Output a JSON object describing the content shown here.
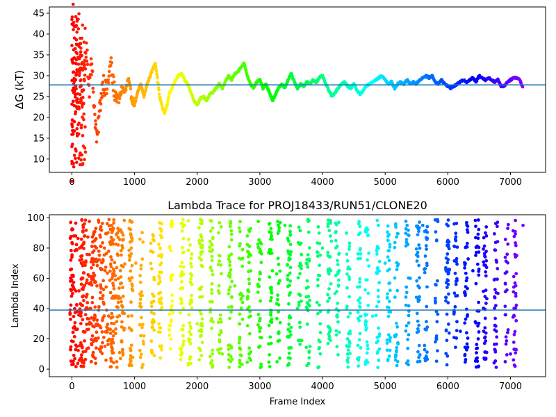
{
  "chart_data": [
    {
      "type": "scatter",
      "title": "",
      "xlabel": "",
      "ylabel": "ΔG (kT)",
      "xlim": [
        -360,
        7560
      ],
      "ylim": [
        6.8,
        46.5
      ],
      "xticks": [
        0,
        1000,
        2000,
        3000,
        4000,
        5000,
        6000,
        7000
      ],
      "yticks": [
        10,
        15,
        20,
        25,
        30,
        35,
        40,
        45
      ],
      "hline": 27.8,
      "colormap": "rainbow (red at early frames → purple at late frames)",
      "series": [
        {
          "points": [
            [
              0,
              10
            ],
            [
              0,
              20
            ],
            [
              0,
              40
            ],
            [
              0,
              36
            ],
            [
              0,
              33
            ],
            [
              0,
              26
            ],
            [
              0,
              22
            ],
            [
              0,
              14
            ],
            [
              0,
              8
            ],
            [
              20,
              43
            ],
            [
              20,
              30
            ],
            [
              20,
              17
            ],
            [
              40,
              39
            ],
            [
              40,
              25
            ],
            [
              40,
              12
            ],
            [
              60,
              35
            ],
            [
              60,
              28
            ],
            [
              80,
              41
            ],
            [
              80,
              23
            ],
            [
              100,
              38
            ],
            [
              100,
              19
            ],
            [
              120,
              32
            ],
            [
              140,
              36
            ],
            [
              140,
              24
            ],
            [
              160,
              40
            ],
            [
              160,
              21
            ],
            [
              180,
              34
            ],
            [
              200,
              30
            ],
            [
              200,
              27
            ],
            [
              220,
              37
            ],
            [
              250,
              33
            ],
            [
              280,
              26
            ],
            [
              300,
              35
            ],
            [
              330,
              29
            ],
            [
              360,
              22
            ],
            [
              400,
              14
            ],
            [
              450,
              23
            ],
            [
              500,
              29
            ],
            [
              550,
              26
            ],
            [
              620,
              33
            ],
            [
              660,
              28
            ],
            [
              700,
              25
            ],
            [
              750,
              24
            ],
            [
              800,
              27
            ],
            [
              850,
              26
            ],
            [
              900,
              29
            ],
            [
              950,
              25
            ],
            [
              1000,
              23
            ],
            [
              1050,
              26
            ],
            [
              1100,
              28
            ],
            [
              1150,
              25
            ],
            [
              1200,
              28
            ],
            [
              1250,
              30
            ],
            [
              1300,
              32
            ],
            [
              1330,
              33
            ],
            [
              1360,
              30
            ],
            [
              1400,
              25
            ],
            [
              1450,
              22
            ],
            [
              1480,
              21
            ],
            [
              1520,
              23
            ],
            [
              1560,
              26
            ],
            [
              1600,
              27
            ],
            [
              1650,
              29
            ],
            [
              1700,
              30
            ],
            [
              1750,
              30.5
            ],
            [
              1800,
              29
            ],
            [
              1850,
              28
            ],
            [
              1900,
              26
            ],
            [
              1950,
              24
            ],
            [
              2000,
              23
            ],
            [
              2050,
              24.5
            ],
            [
              2100,
              25
            ],
            [
              2150,
              24
            ],
            [
              2200,
              25.5
            ],
            [
              2250,
              26
            ],
            [
              2300,
              27
            ],
            [
              2350,
              28
            ],
            [
              2400,
              27
            ],
            [
              2450,
              28.5
            ],
            [
              2500,
              30
            ],
            [
              2550,
              29
            ],
            [
              2600,
              30.5
            ],
            [
              2650,
              31
            ],
            [
              2700,
              32
            ],
            [
              2750,
              33
            ],
            [
              2800,
              30
            ],
            [
              2850,
              28
            ],
            [
              2900,
              27
            ],
            [
              2950,
              28.5
            ],
            [
              3000,
              29
            ],
            [
              3050,
              27
            ],
            [
              3100,
              28
            ],
            [
              3150,
              26
            ],
            [
              3200,
              24
            ],
            [
              3250,
              25.5
            ],
            [
              3300,
              27
            ],
            [
              3350,
              28
            ],
            [
              3400,
              27
            ],
            [
              3450,
              29
            ],
            [
              3500,
              30.5
            ],
            [
              3550,
              28.5
            ],
            [
              3600,
              27
            ],
            [
              3650,
              28
            ],
            [
              3700,
              27.5
            ],
            [
              3750,
              28.5
            ],
            [
              3800,
              28
            ],
            [
              3850,
              29
            ],
            [
              3900,
              28.5
            ],
            [
              3950,
              29.5
            ],
            [
              4000,
              30
            ],
            [
              4050,
              28
            ],
            [
              4100,
              26.5
            ],
            [
              4150,
              25
            ],
            [
              4200,
              26
            ],
            [
              4250,
              27
            ],
            [
              4300,
              28
            ],
            [
              4350,
              28.5
            ],
            [
              4400,
              27.5
            ],
            [
              4450,
              27
            ],
            [
              4500,
              28
            ],
            [
              4550,
              26.5
            ],
            [
              4600,
              25.5
            ],
            [
              4650,
              26.5
            ],
            [
              4700,
              27.5
            ],
            [
              4750,
              28
            ],
            [
              4800,
              28.5
            ],
            [
              4850,
              29
            ],
            [
              4900,
              29.5
            ],
            [
              4950,
              30
            ],
            [
              5000,
              29
            ],
            [
              5050,
              28
            ],
            [
              5100,
              28.5
            ],
            [
              5150,
              27
            ],
            [
              5200,
              28
            ],
            [
              5250,
              28.5
            ],
            [
              5300,
              28
            ],
            [
              5350,
              29
            ],
            [
              5400,
              28
            ],
            [
              5450,
              28.5
            ],
            [
              5500,
              28
            ],
            [
              5550,
              29
            ],
            [
              5600,
              29.5
            ],
            [
              5650,
              30
            ],
            [
              5700,
              29.5
            ],
            [
              5750,
              30
            ],
            [
              5800,
              28.5
            ],
            [
              5850,
              28
            ],
            [
              5900,
              29
            ],
            [
              5950,
              28
            ],
            [
              6000,
              27.5
            ],
            [
              6050,
              27
            ],
            [
              6100,
              27.5
            ],
            [
              6150,
              28
            ],
            [
              6200,
              28.5
            ],
            [
              6250,
              29
            ],
            [
              6300,
              28.5
            ],
            [
              6350,
              29
            ],
            [
              6400,
              29.5
            ],
            [
              6450,
              28.5
            ],
            [
              6500,
              30
            ],
            [
              6550,
              29.5
            ],
            [
              6600,
              29
            ],
            [
              6650,
              29.5
            ],
            [
              6700,
              29
            ],
            [
              6750,
              28.5
            ],
            [
              6800,
              29
            ],
            [
              6850,
              27.5
            ],
            [
              6900,
              27.5
            ],
            [
              6950,
              28.5
            ],
            [
              7000,
              29
            ],
            [
              7050,
              29.5
            ],
            [
              7100,
              29.5
            ],
            [
              7150,
              29
            ],
            [
              7200,
              27
            ]
          ]
        }
      ]
    },
    {
      "type": "scatter",
      "title": "Lambda Trace for PROJ18433/RUN51/CLONE20",
      "xlabel": "Frame Index",
      "ylabel": "Lambda Index",
      "xlim": [
        -360,
        7560
      ],
      "ylim": [
        -5,
        102
      ],
      "xticks": [
        0,
        1000,
        2000,
        3000,
        4000,
        5000,
        6000,
        7000
      ],
      "yticks": [
        0,
        20,
        40,
        60,
        80,
        100
      ],
      "hline": 39,
      "colormap": "rainbow (red at early frames → purple at late frames)",
      "point_count": 1800,
      "series": [
        {
          "points": [
            [
              0,
              3
            ],
            [
              0,
              74
            ],
            [
              0,
              92
            ],
            [
              10,
              50
            ],
            [
              20,
              62
            ],
            [
              40,
              28
            ],
            [
              60,
              88
            ],
            [
              80,
              15
            ],
            [
              150,
              70
            ],
            [
              200,
              96
            ],
            [
              300,
              40
            ],
            [
              400,
              55
            ],
            [
              520,
              80
            ],
            [
              640,
              12
            ],
            [
              780,
              92
            ],
            [
              900,
              35
            ],
            [
              1020,
              70
            ],
            [
              1150,
              22
            ],
            [
              1300,
              88
            ],
            [
              1400,
              60
            ],
            [
              1600,
              45
            ],
            [
              1800,
              95
            ],
            [
              2000,
              30
            ],
            [
              2200,
              78
            ],
            [
              2400,
              10
            ],
            [
              2600,
              55
            ],
            [
              2800,
              88
            ],
            [
              3000,
              25
            ],
            [
              3200,
              65
            ],
            [
              3400,
              95
            ],
            [
              3600,
              40
            ],
            [
              3800,
              15
            ],
            [
              4000,
              80
            ],
            [
              4200,
              50
            ],
            [
              4400,
              20
            ],
            [
              4600,
              90
            ],
            [
              4800,
              35
            ],
            [
              5000,
              70
            ],
            [
              5200,
              5
            ],
            [
              5400,
              60
            ],
            [
              5600,
              95
            ],
            [
              5800,
              45
            ],
            [
              6000,
              85
            ],
            [
              6200,
              25
            ],
            [
              6400,
              65
            ],
            [
              6600,
              90
            ],
            [
              6800,
              50
            ],
            [
              7000,
              10
            ],
            [
              7100,
              75
            ],
            [
              7200,
              95
            ]
          ]
        }
      ]
    }
  ]
}
